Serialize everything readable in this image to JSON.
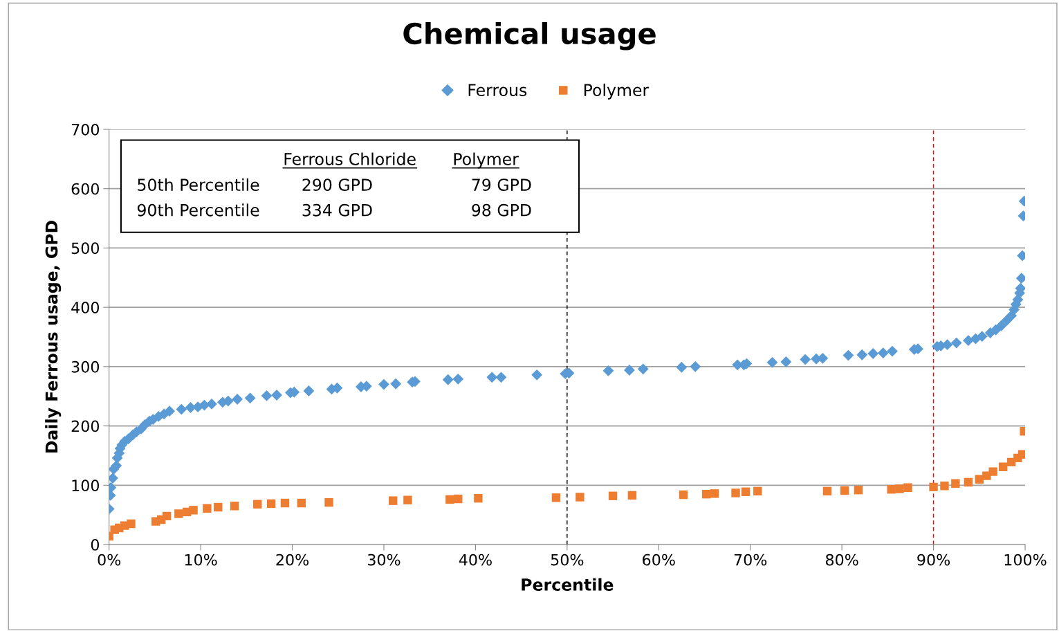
{
  "chart_data": {
    "type": "scatter",
    "title": "Chemical usage",
    "xlabel": "Percentile",
    "ylabel": "Daily Ferrous usage, GPD",
    "series": [
      {
        "name": "Ferrous",
        "color": "#5b9bd5",
        "marker": "diamond",
        "x": [
          0,
          0.15,
          0.2,
          0.4,
          0.5,
          0.8,
          0.9,
          1.1,
          1.2,
          1.4,
          1.7,
          2.1,
          2.6,
          3,
          3.5,
          3.9,
          4.4,
          4.8,
          5.4,
          6,
          6.6,
          7.9,
          8.9,
          9.7,
          10.4,
          11.2,
          12.4,
          13,
          14,
          15.4,
          17.2,
          18.3,
          19.8,
          20.2,
          21.8,
          24.3,
          24.9,
          27.5,
          28.1,
          30,
          31.3,
          33.1,
          33.4,
          37,
          38.1,
          41.8,
          42.8,
          46.7,
          49.8,
          50.2,
          54.5,
          56.8,
          58.3,
          62.5,
          64,
          68.6,
          69.3,
          69.6,
          72.4,
          73.9,
          76,
          77.2,
          77.9,
          80.7,
          82.2,
          83.4,
          84.5,
          85.5,
          87.9,
          88.3,
          90.4,
          90.8,
          91.5,
          92.5,
          93.8,
          94.6,
          95.3,
          96.2,
          96.8,
          97.4,
          98,
          98.5,
          98.8,
          99,
          99.2,
          99.4,
          99.5,
          99.6,
          99.7,
          99.8,
          99.9
        ],
        "values": [
          60,
          83,
          96,
          112,
          127,
          133,
          146,
          154,
          162,
          168,
          174,
          178,
          185,
          190,
          195,
          202,
          208,
          211,
          216,
          220,
          225,
          228,
          231,
          232,
          235,
          237,
          240,
          242,
          245,
          247,
          251,
          252,
          256,
          257,
          259,
          262,
          264,
          266,
          267,
          270,
          271,
          274,
          275,
          278,
          279,
          282,
          282,
          286,
          288,
          289,
          293,
          294,
          296,
          299,
          300,
          303,
          303,
          305,
          307,
          308,
          312,
          313,
          314,
          319,
          320,
          322,
          323,
          326,
          329,
          330,
          334,
          335,
          337,
          340,
          344,
          347,
          351,
          357,
          362,
          369,
          378,
          386,
          396,
          405,
          413,
          424,
          432,
          449,
          487,
          554,
          579
        ]
      },
      {
        "name": "Polymer",
        "color": "#ed7d31",
        "marker": "square",
        "x": [
          0,
          0.3,
          0.6,
          1.1,
          1.7,
          2.4,
          5.1,
          5.7,
          6.3,
          7.6,
          8.5,
          9.2,
          10.7,
          11.9,
          13.7,
          16.2,
          17.7,
          19.2,
          21,
          24,
          31,
          32.6,
          37.2,
          38.1,
          40.3,
          48.8,
          51.4,
          55,
          57.1,
          62.7,
          65.2,
          66.1,
          68.4,
          69.5,
          70.8,
          78.4,
          80.3,
          81.8,
          85.4,
          86.3,
          87.2,
          90,
          91.2,
          92.4,
          93.8,
          95,
          95.8,
          96.5,
          97.6,
          98.5,
          99.2,
          99.7,
          99.9
        ],
        "values": [
          14,
          null,
          25,
          28,
          32,
          35,
          39,
          42,
          48,
          52,
          55,
          58,
          61,
          63,
          65,
          68,
          69,
          70,
          70,
          71,
          74,
          75,
          76,
          77,
          78,
          79,
          80,
          82,
          83,
          84,
          85,
          86,
          87,
          89,
          90,
          90,
          91,
          92,
          93,
          94,
          96,
          97,
          99,
          103,
          105,
          110,
          116,
          123,
          131,
          139,
          146,
          152,
          191
        ]
      }
    ],
    "xlim": [
      0,
      100
    ],
    "xticks": [
      {
        "value": 0,
        "label": "0%"
      },
      {
        "value": 10,
        "label": "10%"
      },
      {
        "value": 20,
        "label": "20%"
      },
      {
        "value": 30,
        "label": "30%"
      },
      {
        "value": 40,
        "label": "40%"
      },
      {
        "value": 50,
        "label": "50%"
      },
      {
        "value": 60,
        "label": "60%"
      },
      {
        "value": 70,
        "label": "70%"
      },
      {
        "value": 80,
        "label": "80%"
      },
      {
        "value": 90,
        "label": "90%"
      },
      {
        "value": 100,
        "label": "100%"
      }
    ],
    "ylim": [
      0,
      700
    ],
    "yticks": [
      0,
      100,
      200,
      300,
      400,
      500,
      600,
      700
    ],
    "grid": "y",
    "legend": "top",
    "ref_lines": [
      {
        "axis": "x",
        "value": 50,
        "color": "#000000",
        "line_style": "dashed"
      },
      {
        "axis": "x",
        "value": 90,
        "color": "#ff0000",
        "line_style": "dashed"
      }
    ],
    "annotations": [
      "Ferrous Chloride",
      "Polymer",
      "50th Percentile",
      "290 GPD",
      "79 GPD",
      "90th Percentile",
      "334 GPD",
      "98 GPD"
    ]
  }
}
